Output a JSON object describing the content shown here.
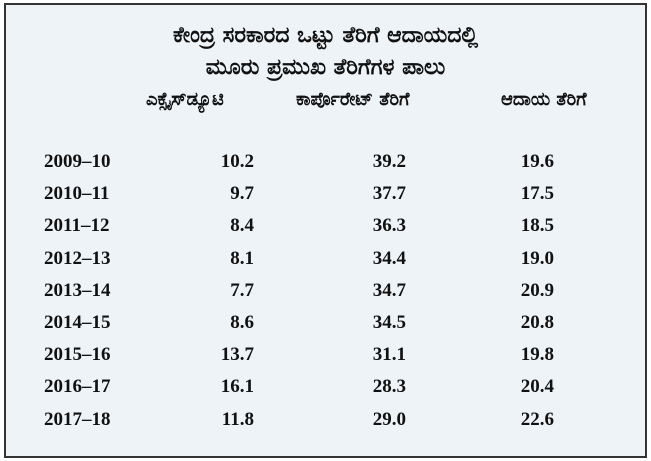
{
  "header": {
    "title_lines": [
      "ಕೇಂದ್ರ ಸರಕಾರದ ಒಟ್ಟು ತೆರಿಗೆ ಆದಾಯದಲ್ಲಿ",
      "ಮೂರು ಪ್ರಮುಖ ತೆರಿಗೆಗಳ ಪಾಲು"
    ]
  },
  "table": {
    "columns": [
      "ಎಕ್ಸೈಸ್‌ಡ್ಯೂಟಿ",
      "ಕಾರ್ಪೊರೇಟ್ ತೆರಿಗೆ",
      "ಆದಾಯ ತೆರಿಗೆ"
    ],
    "rows": [
      [
        "2009–10",
        "10.2",
        "39.2",
        "19.6"
      ],
      [
        "2010–11",
        "9.7",
        "37.7",
        "17.5"
      ],
      [
        "2011–12",
        "8.4",
        "36.3",
        "18.5"
      ],
      [
        "2012–13",
        "8.1",
        "34.4",
        "19.0"
      ],
      [
        "2013–14",
        "7.7",
        "34.7",
        "20.9"
      ],
      [
        "2014–15",
        "8.6",
        "34.5",
        "20.8"
      ],
      [
        "2015–16",
        "13.7",
        "31.1",
        "19.8"
      ],
      [
        "2016–17",
        "16.1",
        "28.3",
        "20.4"
      ],
      [
        "2017–18",
        "11.8",
        "29.0",
        "22.6"
      ]
    ]
  }
}
